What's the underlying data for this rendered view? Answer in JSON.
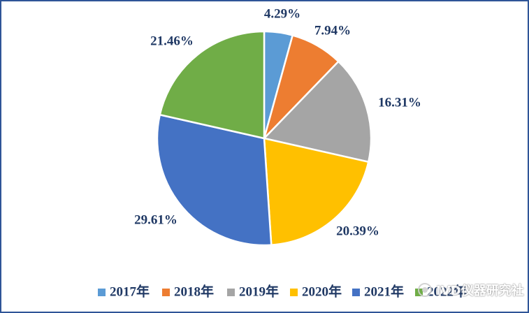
{
  "chart_data": {
    "type": "pie",
    "title": "",
    "categories": [
      "2017年",
      "2018年",
      "2019年",
      "2020年",
      "2021年",
      "2022年"
    ],
    "values": [
      4.29,
      7.94,
      16.31,
      20.39,
      29.61,
      21.46
    ],
    "labels": [
      "4.29%",
      "7.94%",
      "16.31%",
      "20.39%",
      "29.61%",
      "21.46%"
    ],
    "colors": [
      "#5B9BD5",
      "#ED7D31",
      "#A5A5A5",
      "#FFC000",
      "#4472C4",
      "#70AD47"
    ],
    "legend_position": "bottom",
    "start_angle": "12 o'clock, clockwise"
  },
  "frame_color": "#2F5597",
  "watermark": {
    "text": "IVD仪器研究社",
    "icon": "wechat-logo-icon"
  }
}
